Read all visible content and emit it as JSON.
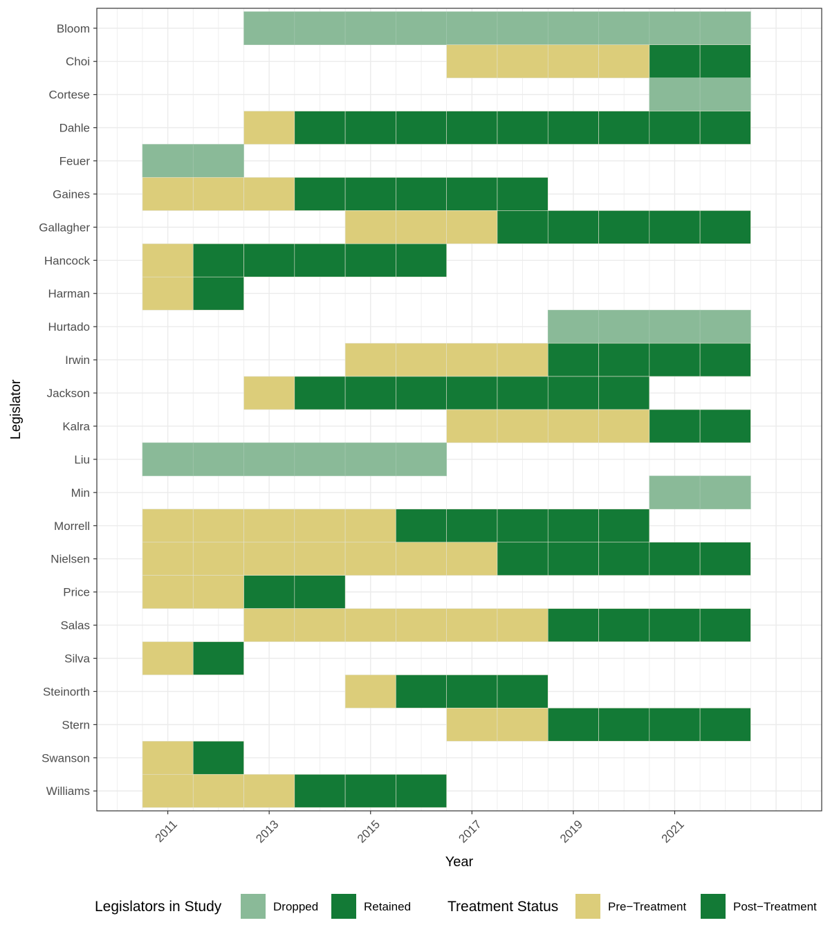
{
  "chart_data": {
    "type": "heatmap",
    "xlabel": "Year",
    "ylabel": "Legislator",
    "x_ticks": [
      2011,
      2013,
      2015,
      2017,
      2019,
      2021
    ],
    "xlim": [
      2009.6,
      2023.9
    ],
    "grid": true,
    "colors": {
      "dropped": "#8aba98",
      "retained": "#137a36",
      "pre_treatment": "#dccd7a",
      "post_treatment": "#137a36"
    },
    "legends": [
      {
        "title": "Legislators in Study",
        "items": [
          {
            "label": "Dropped",
            "key": "dropped"
          },
          {
            "label": "Retained",
            "key": "retained"
          }
        ]
      },
      {
        "title": "Treatment Status",
        "items": [
          {
            "label": "Pre−Treatment",
            "key": "pre_treatment"
          },
          {
            "label": "Post−Treatment",
            "key": "post_treatment"
          }
        ]
      }
    ],
    "legislators": [
      {
        "name": "Bloom",
        "status": "dropped",
        "first_year": 2013,
        "last_year": 2022
      },
      {
        "name": "Choi",
        "status": "retained",
        "first_year": 2017,
        "last_year": 2022,
        "first_treated_year": 2021
      },
      {
        "name": "Cortese",
        "status": "dropped",
        "first_year": 2021,
        "last_year": 2022
      },
      {
        "name": "Dahle",
        "status": "retained",
        "first_year": 2013,
        "last_year": 2022,
        "first_treated_year": 2014
      },
      {
        "name": "Feuer",
        "status": "dropped",
        "first_year": 2011,
        "last_year": 2012
      },
      {
        "name": "Gaines",
        "status": "retained",
        "first_year": 2011,
        "last_year": 2018,
        "first_treated_year": 2014
      },
      {
        "name": "Gallagher",
        "status": "retained",
        "first_year": 2015,
        "last_year": 2022,
        "first_treated_year": 2018
      },
      {
        "name": "Hancock",
        "status": "retained",
        "first_year": 2011,
        "last_year": 2016,
        "first_treated_year": 2012
      },
      {
        "name": "Harman",
        "status": "retained",
        "first_year": 2011,
        "last_year": 2012,
        "first_treated_year": 2012
      },
      {
        "name": "Hurtado",
        "status": "dropped",
        "first_year": 2019,
        "last_year": 2022
      },
      {
        "name": "Irwin",
        "status": "retained",
        "first_year": 2015,
        "last_year": 2022,
        "first_treated_year": 2019
      },
      {
        "name": "Jackson",
        "status": "retained",
        "first_year": 2013,
        "last_year": 2020,
        "first_treated_year": 2014
      },
      {
        "name": "Kalra",
        "status": "retained",
        "first_year": 2017,
        "last_year": 2022,
        "first_treated_year": 2021
      },
      {
        "name": "Liu",
        "status": "dropped",
        "first_year": 2011,
        "last_year": 2016
      },
      {
        "name": "Min",
        "status": "dropped",
        "first_year": 2021,
        "last_year": 2022
      },
      {
        "name": "Morrell",
        "status": "retained",
        "first_year": 2011,
        "last_year": 2020,
        "first_treated_year": 2016
      },
      {
        "name": "Nielsen",
        "status": "retained",
        "first_year": 2011,
        "last_year": 2022,
        "first_treated_year": 2018
      },
      {
        "name": "Price",
        "status": "retained",
        "first_year": 2011,
        "last_year": 2014,
        "first_treated_year": 2013
      },
      {
        "name": "Salas",
        "status": "retained",
        "first_year": 2013,
        "last_year": 2022,
        "first_treated_year": 2019
      },
      {
        "name": "Silva",
        "status": "retained",
        "first_year": 2011,
        "last_year": 2012,
        "first_treated_year": 2012
      },
      {
        "name": "Steinorth",
        "status": "retained",
        "first_year": 2015,
        "last_year": 2018,
        "first_treated_year": 2016
      },
      {
        "name": "Stern",
        "status": "retained",
        "first_year": 2017,
        "last_year": 2022,
        "first_treated_year": 2019
      },
      {
        "name": "Swanson",
        "status": "retained",
        "first_year": 2011,
        "last_year": 2012,
        "first_treated_year": 2012
      },
      {
        "name": "Williams",
        "status": "retained",
        "first_year": 2011,
        "last_year": 2016,
        "first_treated_year": 2014
      }
    ]
  }
}
